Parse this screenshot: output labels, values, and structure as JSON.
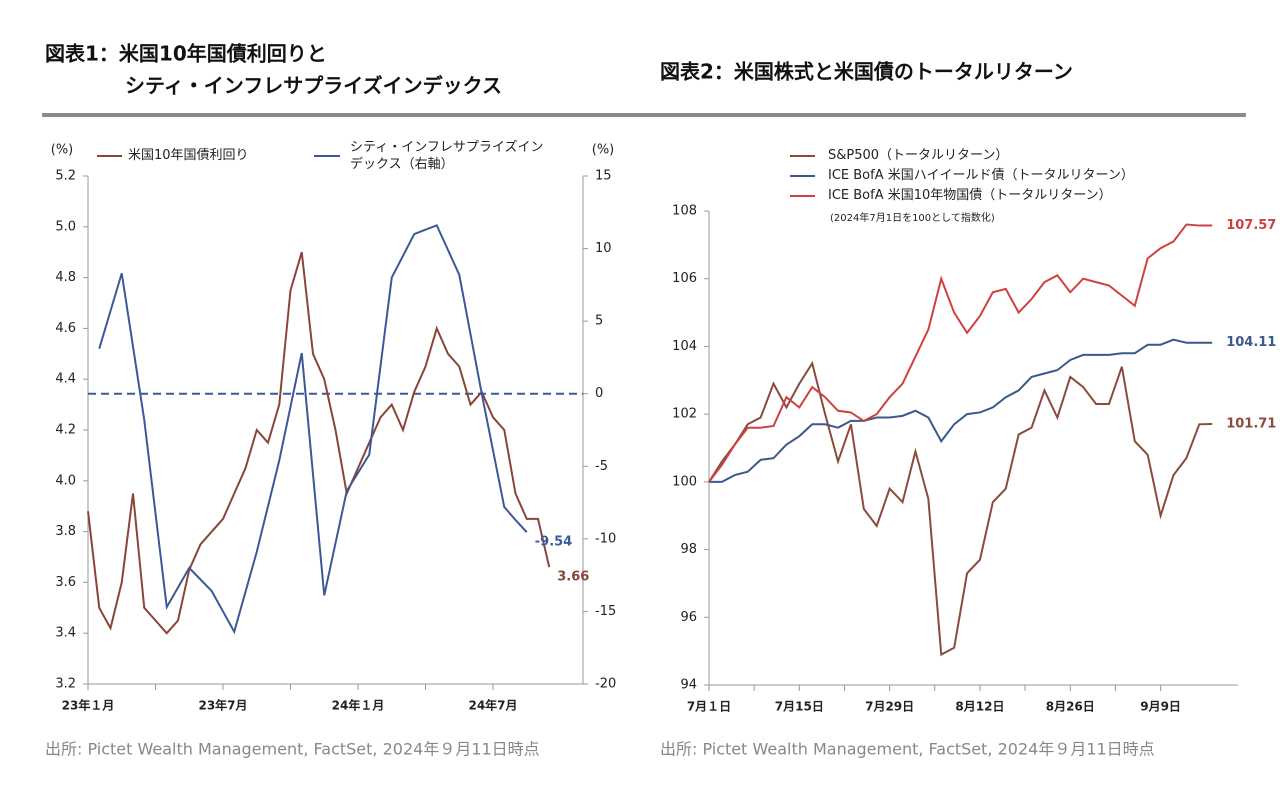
{
  "chart_data": [
    {
      "type": "line",
      "title_lines": [
        "図表1：米国10年国債利回りと",
        "シティ・インフレサプライズインデックス"
      ],
      "ylabel": "(%)",
      "y2label": "(%)",
      "categories": [
        "23年１月",
        null,
        null,
        null,
        null,
        null,
        null,
        null,
        null,
        null,
        null,
        null,
        "23年7月",
        null,
        null,
        null,
        null,
        null,
        null,
        null,
        null,
        null,
        null,
        null,
        "24年１月",
        null,
        null,
        null,
        null,
        null,
        null,
        null,
        null,
        null,
        null,
        null,
        "24年7月",
        null,
        null,
        null,
        null,
        null,
        null,
        null,
        null
      ],
      "series": [
        {
          "name": "米国10年国債利回り",
          "color": "#8b4538",
          "values": [
            3.88,
            3.5,
            3.42,
            3.6,
            3.95,
            3.5,
            3.45,
            3.4,
            3.45,
            3.65,
            3.75,
            3.8,
            3.85,
            3.95,
            4.05,
            4.2,
            4.15,
            4.3,
            4.75,
            4.9,
            4.5,
            4.4,
            4.2,
            3.95,
            4.05,
            4.15,
            4.25,
            4.3,
            4.2,
            4.35,
            4.45,
            4.6,
            4.5,
            4.45,
            4.3,
            4.35,
            4.25,
            4.2,
            3.95,
            3.85,
            3.85,
            3.66,
            null,
            null,
            null
          ]
        },
        {
          "name": "シティ・インフレサプライズインデックス（右軸）",
          "color": "#3b5998",
          "axis": "y2",
          "values": [
            null,
            3.1,
            5.7,
            8.3,
            3.25,
            -1.8,
            -8.25,
            -14.7,
            -13.35,
            -12,
            -12.8,
            -13.6,
            -15,
            -16.4,
            -13.65,
            -10.9,
            -7.75,
            -4.6,
            -0.9,
            2.8,
            -5.55,
            -13.9,
            -10.3,
            -6.7,
            -5.45,
            -4.2,
            1.9,
            8,
            9.5,
            11,
            11.3,
            11.6,
            9.9,
            8.2,
            4.1,
            0,
            -3.9,
            -7.8,
            -8.7,
            -9.54,
            null,
            null,
            null,
            null,
            null
          ]
        }
      ],
      "ylim": [
        3.2,
        5.2
      ],
      "yticks": [
        3.2,
        3.4,
        3.6,
        3.8,
        {
          "value": 4,
          "label": "4.0"
        },
        4.2,
        4.4,
        4.6,
        4.8,
        {
          "value": 5,
          "label": "5.0"
        },
        5.2
      ],
      "y2lim": [
        -20,
        15
      ],
      "y2ticks": [
        -20,
        -15,
        -10,
        -5,
        0,
        5,
        10,
        15
      ],
      "hlines": [
        {
          "value": 0,
          "axis": "y2",
          "style": "dashed",
          "color": "#3b5998"
        }
      ],
      "end_labels": true,
      "grid": false,
      "source": "出所: Pictet Wealth Management, FactSet, 2024年９月11日時点"
    },
    {
      "type": "line",
      "title_lines": [
        "図表2：米国株式と米国債のトータルリターン"
      ],
      "note": "(2024年7月1日を100として指数化)",
      "categories": [
        "7月１日",
        null,
        null,
        null,
        null,
        null,
        null,
        "7月15日",
        null,
        null,
        null,
        null,
        null,
        null,
        "7月29日",
        null,
        null,
        null,
        null,
        null,
        null,
        "8月12日",
        null,
        null,
        null,
        null,
        null,
        null,
        "8月26日",
        null,
        null,
        null,
        null,
        null,
        null,
        "9月9日",
        null,
        null,
        null,
        null,
        null,
        null
      ],
      "series": [
        {
          "name": "S&P500（トータルリターン）",
          "color": "#8b4a3c",
          "values": [
            100,
            100.6,
            101.1,
            101.7,
            101.9,
            102.9,
            102.2,
            102.9,
            103.5,
            102,
            100.6,
            101.7,
            99.2,
            98.7,
            99.8,
            99.4,
            100.9,
            99.5,
            94.9,
            95.1,
            97.3,
            97.7,
            99.4,
            99.8,
            101.4,
            101.6,
            102.7,
            101.9,
            103.1,
            102.8,
            102.3,
            102.3,
            103.4,
            101.2,
            100.8,
            99,
            100.2,
            100.7,
            101.7,
            101.71,
            null,
            null
          ]
        },
        {
          "name": "ICE BofA 米国ハイイールド債（トータルリターン）",
          "color": "#3a5a8c",
          "values": [
            100,
            100,
            100.2,
            100.3,
            100.65,
            100.7,
            101.1,
            101.35,
            101.7,
            101.7,
            101.6,
            101.8,
            101.8,
            101.9,
            101.9,
            101.95,
            102.1,
            101.9,
            101.2,
            101.7,
            102,
            102.05,
            102.2,
            102.5,
            102.7,
            103.1,
            103.2,
            103.3,
            103.6,
            103.75,
            103.75,
            103.75,
            103.8,
            103.8,
            104.05,
            104.05,
            104.2,
            104.11,
            104.11,
            104.11,
            null,
            null
          ]
        },
        {
          "name": "ICE BofA 米国10年物国債（トータルリターン）",
          "color": "#d04040",
          "values": [
            100,
            100.5,
            101.1,
            101.6,
            101.6,
            101.65,
            102.5,
            102.2,
            102.8,
            102.5,
            102.1,
            102.05,
            101.8,
            102,
            102.5,
            102.9,
            103.7,
            104.5,
            106,
            105,
            104.4,
            104.9,
            105.6,
            105.7,
            105,
            105.4,
            105.9,
            106.1,
            105.6,
            106,
            105.9,
            105.8,
            105.5,
            105.2,
            106.6,
            106.9,
            107.1,
            107.6,
            107.57,
            107.57,
            null,
            null
          ]
        }
      ],
      "ylim": [
        94,
        108
      ],
      "yticks": [
        94,
        96,
        98,
        100,
        102,
        104,
        106,
        108
      ],
      "end_labels": true,
      "grid": false,
      "source": "出所: Pictet Wealth Management, FactSet, 2024年９月11日時点"
    }
  ]
}
